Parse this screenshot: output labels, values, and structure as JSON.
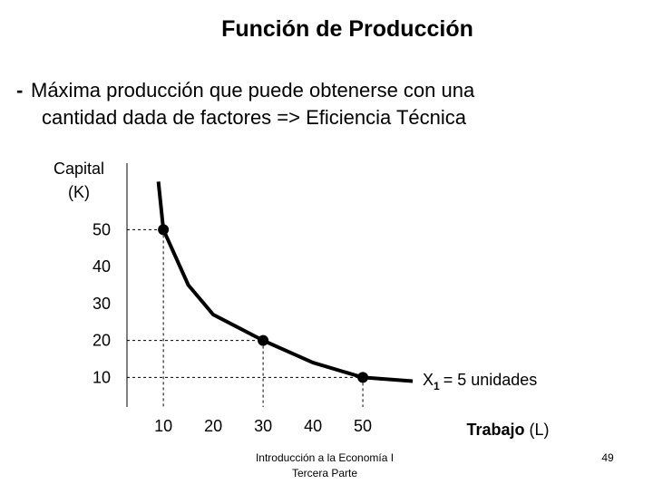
{
  "slide": {
    "title": "Función de Producción",
    "bullet_marker": "-",
    "bullet_lines": [
      "Máxima producción que puede obtenerse con una",
      "cantidad dada de factores => Eficiencia Técnica"
    ],
    "footer_lines": [
      "Introducción a la Economía I",
      "Tercera Parte"
    ],
    "page_number": "49"
  },
  "chart_data": {
    "type": "line",
    "y_label": [
      "Capital",
      "(K)"
    ],
    "x_label": {
      "main": "Trabajo",
      "unit": "(L)"
    },
    "series": [
      {
        "color": "#000000",
        "x": [
          9,
          10,
          15,
          20,
          30,
          40,
          50,
          60
        ],
        "values": [
          63,
          50,
          35,
          27,
          20,
          14,
          10,
          9
        ]
      }
    ],
    "points": {
      "x": [
        10,
        30,
        50
      ],
      "values": [
        50,
        20,
        10
      ]
    },
    "annotation": {
      "text": "X",
      "subscript": "1",
      "rest": "= 5 unidades"
    },
    "xlim": [
      2.7,
      90
    ],
    "ylim": [
      2,
      68
    ],
    "xticks": [
      10,
      20,
      30,
      40,
      50
    ],
    "yticks": [
      10,
      20,
      30,
      40,
      50
    ]
  }
}
